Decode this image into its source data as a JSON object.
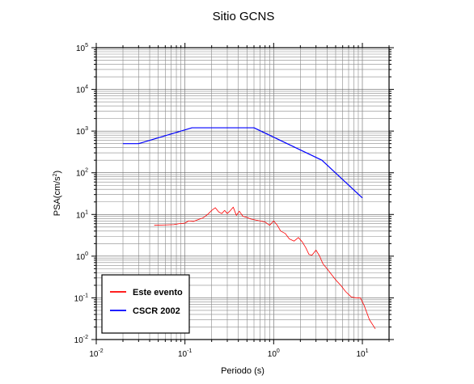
{
  "chart_data": {
    "type": "line",
    "title": "Sitio GCNS",
    "xlabel": "Periodo (s)",
    "ylabel_parts": {
      "base": "PSA(cm/s",
      "sup": "2",
      "end": ")"
    },
    "x_scale": "log",
    "y_scale": "log",
    "xlim": [
      0.01,
      20
    ],
    "ylim": [
      0.01,
      100000
    ],
    "grid": true,
    "x_ticks": [
      {
        "value": 0.01,
        "base": "10",
        "exp": "-2"
      },
      {
        "value": 0.1,
        "base": "10",
        "exp": "-1"
      },
      {
        "value": 1,
        "base": "10",
        "exp": "0"
      },
      {
        "value": 10,
        "base": "10",
        "exp": "1"
      }
    ],
    "y_ticks": [
      {
        "value": 0.01,
        "base": "10",
        "exp": "-2"
      },
      {
        "value": 0.1,
        "base": "10",
        "exp": "-1"
      },
      {
        "value": 1,
        "base": "10",
        "exp": "0"
      },
      {
        "value": 10,
        "base": "10",
        "exp": "1"
      },
      {
        "value": 100,
        "base": "10",
        "exp": "2"
      },
      {
        "value": 1000,
        "base": "10",
        "exp": "3"
      },
      {
        "value": 10000,
        "base": "10",
        "exp": "4"
      },
      {
        "value": 100000,
        "base": "10",
        "exp": "5"
      }
    ],
    "legend_position": "bottom-left",
    "series": [
      {
        "name": "Este evento",
        "color": "#ff0000",
        "x": [
          0.045,
          0.06,
          0.075,
          0.085,
          0.1,
          0.11,
          0.125,
          0.14,
          0.16,
          0.18,
          0.2,
          0.22,
          0.24,
          0.26,
          0.28,
          0.3,
          0.32,
          0.35,
          0.38,
          0.41,
          0.45,
          0.5,
          0.55,
          0.6,
          0.7,
          0.8,
          0.9,
          1.0,
          1.1,
          1.2,
          1.35,
          1.5,
          1.7,
          1.9,
          2.1,
          2.3,
          2.5,
          2.7,
          3.0,
          3.3,
          3.6,
          4.0,
          4.5,
          5.0,
          5.7,
          6.5,
          7.5,
          8.5,
          9.5,
          10.5,
          12.0,
          14.0
        ],
        "y": [
          5.5,
          5.6,
          5.7,
          6.0,
          6.2,
          7.0,
          6.8,
          7.5,
          8.3,
          10.0,
          12.5,
          14.5,
          11.5,
          10.5,
          12.5,
          10.5,
          12.0,
          15.0,
          9.5,
          12.0,
          9.0,
          8.5,
          7.8,
          7.5,
          7.0,
          6.6,
          5.5,
          7.0,
          5.5,
          4.0,
          3.5,
          2.6,
          2.3,
          2.8,
          2.2,
          1.6,
          1.1,
          1.05,
          1.4,
          1.0,
          0.65,
          0.5,
          0.36,
          0.27,
          0.2,
          0.14,
          0.105,
          0.1,
          0.1,
          0.065,
          0.03,
          0.018
        ]
      },
      {
        "name": "CSCR 2002",
        "color": "#0000ff",
        "x": [
          0.02,
          0.03,
          0.12,
          0.6,
          3.5,
          10
        ],
        "y": [
          500,
          500,
          1200,
          1200,
          200,
          25
        ]
      }
    ]
  }
}
